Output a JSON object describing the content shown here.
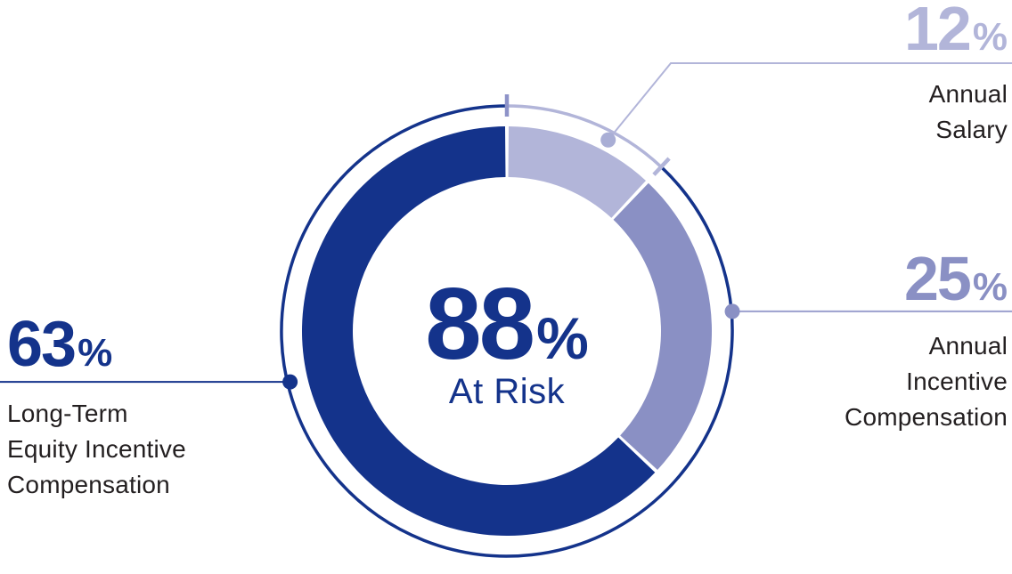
{
  "background": "#FFFFFF",
  "text_color": "#231F20",
  "percent_sign": "%",
  "chart_data": {
    "type": "pie",
    "subtype": "donut",
    "start_angle_deg": 0,
    "direction": "clockwise",
    "legend_position": "callouts",
    "center_label": {
      "value": 88,
      "caption": "At Risk",
      "color": "#14338B"
    },
    "segments": [
      {
        "label": "Annual Salary",
        "label_lines": [
          "Annual",
          "Salary"
        ],
        "value": 12,
        "color": "#B2B5D9",
        "callout": {
          "line_color": "#B2B5D9",
          "dot_color": "#A9AED5",
          "value_color": "#B2B5D9"
        }
      },
      {
        "label": "Annual Incentive Compensation",
        "label_lines": [
          "Annual",
          "Incentive",
          "Compensation"
        ],
        "value": 25,
        "color": "#8A90C4",
        "callout": {
          "line_color": "#9BA0CE",
          "dot_color": "#8A90C4",
          "value_color": "#8A90C4"
        }
      },
      {
        "label": "Long-Term Equity Incentive Compensation",
        "label_lines": [
          "Long-Term",
          "Equity Incentive",
          "Compensation"
        ],
        "value": 63,
        "color": "#14338B",
        "callout": {
          "line_color": "#14338B",
          "dot_color": "#14338B",
          "value_color": "#14338B"
        }
      }
    ],
    "outer_ring": {
      "arcs": [
        {
          "label": "Annual Salary",
          "value": 12,
          "color": "#B2B5D9"
        },
        {
          "label": "At Risk",
          "value": 88,
          "color": "#14338B"
        }
      ],
      "tick_colors": [
        "#8E93C8",
        "#B2B5D9"
      ]
    }
  }
}
